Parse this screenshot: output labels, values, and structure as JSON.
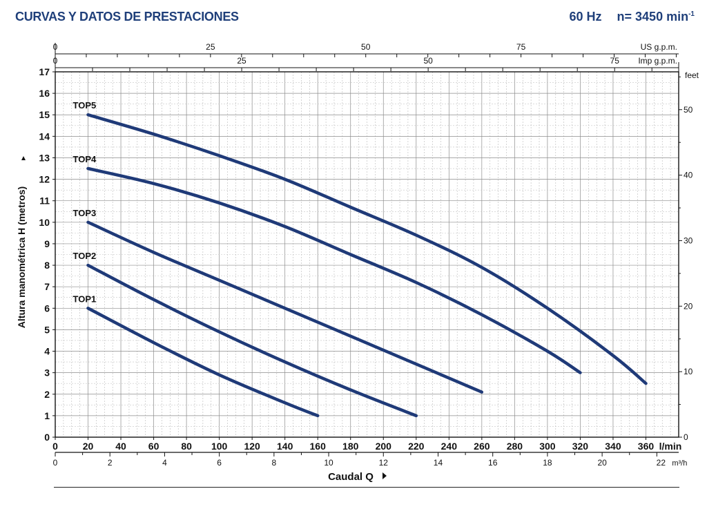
{
  "header": {
    "title": "CURVAS Y DATOS DE PRESTACIONES",
    "frequency": "60 Hz",
    "speed_prefix": "n= 3450 min",
    "speed_exp": "-1"
  },
  "chart_data": {
    "type": "line",
    "ylabel": "Altura manométrica H (metros)",
    "xlabel": "Caudal Q",
    "ylim": [
      0,
      17
    ],
    "xlim": [
      0,
      380
    ],
    "x_unit": "l/min",
    "y_ticks": [
      0,
      1,
      2,
      3,
      4,
      5,
      6,
      7,
      8,
      9,
      10,
      11,
      12,
      13,
      14,
      15,
      16,
      17
    ],
    "x_ticks": [
      0,
      20,
      40,
      60,
      80,
      100,
      120,
      140,
      160,
      180,
      200,
      220,
      240,
      260,
      280,
      300,
      320,
      340,
      360
    ],
    "axes": {
      "us_gpm": {
        "label": "US g.p.m.",
        "ticks": [
          "0",
          "25",
          "50",
          "75"
        ],
        "values": [
          0,
          25,
          50,
          75
        ],
        "lpm_per_unit": 3.785
      },
      "imp_gpm": {
        "label": "Imp g.p.m.",
        "ticks": [
          "0",
          "25",
          "50",
          "75"
        ],
        "values": [
          0,
          25,
          50,
          75
        ],
        "lpm_per_unit": 4.546
      },
      "m3h": {
        "label": "m³/h",
        "ticks": [
          "0",
          "2",
          "4",
          "6",
          "8",
          "10",
          "12",
          "14",
          "16",
          "18",
          "20",
          "22"
        ],
        "values": [
          0,
          2,
          4,
          6,
          8,
          10,
          12,
          14,
          16,
          18,
          20,
          22
        ],
        "lpm_per_unit": 16.667
      },
      "feet": {
        "label": "feet",
        "ticks": [
          "0",
          "10",
          "20",
          "30",
          "40",
          "50"
        ],
        "values": [
          0,
          10,
          20,
          30,
          40,
          50
        ],
        "m_per_unit": 0.3048
      }
    },
    "grid": true,
    "color": "#1f3a78",
    "series": [
      {
        "name": "TOP1",
        "x": [
          20,
          60,
          100,
          140,
          160
        ],
        "y": [
          6,
          4.4,
          2.9,
          1.6,
          1
        ]
      },
      {
        "name": "TOP2",
        "x": [
          20,
          60,
          100,
          140,
          180,
          220
        ],
        "y": [
          8,
          6.4,
          4.9,
          3.5,
          2.2,
          1
        ]
      },
      {
        "name": "TOP3",
        "x": [
          20,
          60,
          100,
          140,
          180,
          220,
          260
        ],
        "y": [
          10,
          8.6,
          7.3,
          6,
          4.7,
          3.4,
          2.1
        ]
      },
      {
        "name": "TOP4",
        "x": [
          20,
          60,
          100,
          140,
          180,
          220,
          260,
          300,
          320
        ],
        "y": [
          12.5,
          11.8,
          10.9,
          9.8,
          8.5,
          7.2,
          5.7,
          4,
          3
        ]
      },
      {
        "name": "TOP5",
        "x": [
          20,
          60,
          100,
          140,
          180,
          220,
          260,
          300,
          340,
          360
        ],
        "y": [
          15,
          14.1,
          13.1,
          12,
          10.7,
          9.4,
          7.9,
          6,
          3.8,
          2.5
        ]
      }
    ]
  }
}
